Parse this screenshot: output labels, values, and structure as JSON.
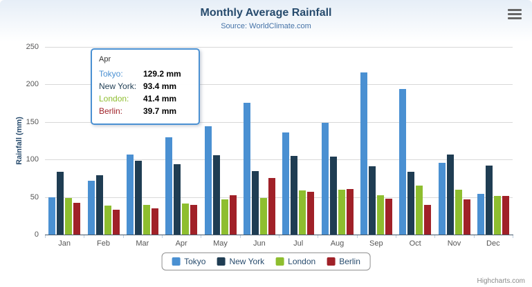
{
  "header": {
    "title": "Monthly Average Rainfall",
    "subtitle": "Source: WorldClimate.com"
  },
  "credits": "Highcharts.com",
  "colors": {
    "title": "#274b6d",
    "subtitle": "#4572a7",
    "grid": "#d8d8d8",
    "axis_line": "#44586a",
    "tooltip_border": "#4a90d2"
  },
  "chart_data": {
    "type": "bar",
    "title": "Monthly Average Rainfall",
    "subtitle": "Source: WorldClimate.com",
    "categories": [
      "Jan",
      "Feb",
      "Mar",
      "Apr",
      "May",
      "Jun",
      "Jul",
      "Aug",
      "Sep",
      "Oct",
      "Nov",
      "Dec"
    ],
    "series": [
      {
        "name": "Tokyo",
        "color": "#4a90d2",
        "values": [
          49.9,
          71.5,
          106.4,
          129.2,
          144.0,
          176.0,
          135.6,
          148.5,
          216.4,
          194.1,
          95.6,
          54.4
        ]
      },
      {
        "name": "New York",
        "color": "#1f3d53",
        "values": [
          83.6,
          78.8,
          98.5,
          93.4,
          106.0,
          84.5,
          105.0,
          104.3,
          91.2,
          83.5,
          106.6,
          92.3
        ]
      },
      {
        "name": "London",
        "color": "#8ebe2f",
        "values": [
          48.9,
          38.8,
          39.3,
          41.4,
          47.0,
          48.3,
          59.0,
          59.6,
          52.4,
          65.2,
          59.3,
          51.2
        ]
      },
      {
        "name": "Berlin",
        "color": "#a02128",
        "values": [
          42.4,
          33.2,
          34.5,
          39.7,
          52.6,
          75.5,
          57.4,
          60.4,
          47.6,
          39.1,
          46.8,
          51.1
        ]
      }
    ],
    "xlabel": "",
    "ylabel": "Rainfall (mm)",
    "ylim": [
      0,
      250
    ],
    "yticks": [
      0,
      50,
      100,
      150,
      200,
      250
    ],
    "grid": true,
    "legend_position": "bottom"
  },
  "tooltip": {
    "category": "Apr",
    "rows": [
      {
        "label": "Tokyo:",
        "value": "129.2 mm",
        "color": "#4a90d2"
      },
      {
        "label": "New York:",
        "value": "93.4 mm",
        "color": "#1f3d53"
      },
      {
        "label": "London:",
        "value": "41.4 mm",
        "color": "#8ebe2f"
      },
      {
        "label": "Berlin:",
        "value": "39.7 mm",
        "color": "#a02128"
      }
    ]
  }
}
